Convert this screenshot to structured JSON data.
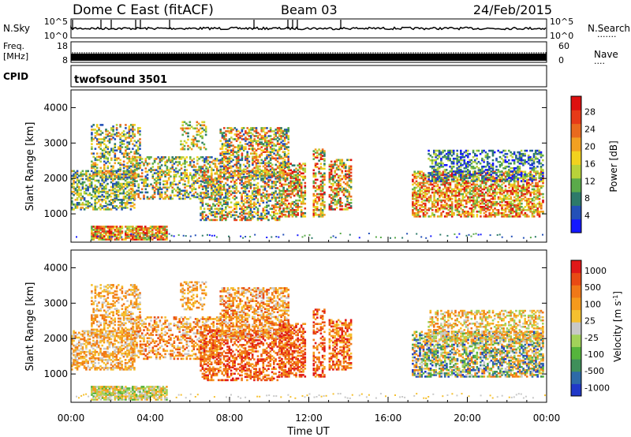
{
  "header": {
    "station": "Dome C East (fitACF)",
    "beam": "Beam 03",
    "date": "24/Feb/2015"
  },
  "status_panels": {
    "nsky_label": "N.Sky",
    "nsky_ticks": [
      "10^5",
      "10^0"
    ],
    "nsearch_label": "N.Search",
    "nsearch_ticks": [
      "10^5",
      "10^0"
    ],
    "freq_label": "Freq.",
    "freq_unit": "[MHz]",
    "freq_ticks": [
      18,
      8
    ],
    "nave_label": "Nave",
    "nave_ticks": [
      60,
      0
    ],
    "cpid_label": "CPID",
    "cpid_value": "twofsound 3501"
  },
  "chart_data": [
    {
      "type": "heatmap",
      "name": "power",
      "ylabel": "Slant Range [km]",
      "ylim": [
        200,
        4500
      ],
      "yticks": [
        1000,
        2000,
        3000,
        4000
      ],
      "xlim_hours": [
        0,
        24
      ],
      "colorbar": {
        "label": "Power [dB]",
        "ticks": [
          "4",
          "8",
          "12",
          "16",
          "20",
          "24",
          "28"
        ],
        "colors": [
          "#1418ff",
          "#2350b8",
          "#2d7a6a",
          "#5aaa4a",
          "#b8d23a",
          "#f2d21e",
          "#f2a022",
          "#e96a1e",
          "#e63a18",
          "#dd1010"
        ]
      }
    },
    {
      "type": "heatmap",
      "name": "velocity",
      "ylabel": "Slant Range [km]",
      "ylim": [
        200,
        4500
      ],
      "yticks": [
        1000,
        2000,
        3000,
        4000
      ],
      "xlim_hours": [
        0,
        24
      ],
      "colorbar": {
        "label": "Velocity [m s^-1]",
        "ticks": [
          "1000",
          "500",
          "100",
          "25",
          "-25",
          "-100",
          "-500",
          "-1000"
        ],
        "colors": [
          "#2038c8",
          "#2e6aa8",
          "#3f8f5a",
          "#55b43c",
          "#a2d25a",
          "#c8c8c8",
          "#f5c030",
          "#f59a1c",
          "#f07818",
          "#e84a14",
          "#e01818"
        ]
      }
    }
  ],
  "x_axis": {
    "ticks": [
      "00:00",
      "04:00",
      "08:00",
      "12:00",
      "16:00",
      "20:00",
      "00:00"
    ],
    "label": "Time UT"
  }
}
